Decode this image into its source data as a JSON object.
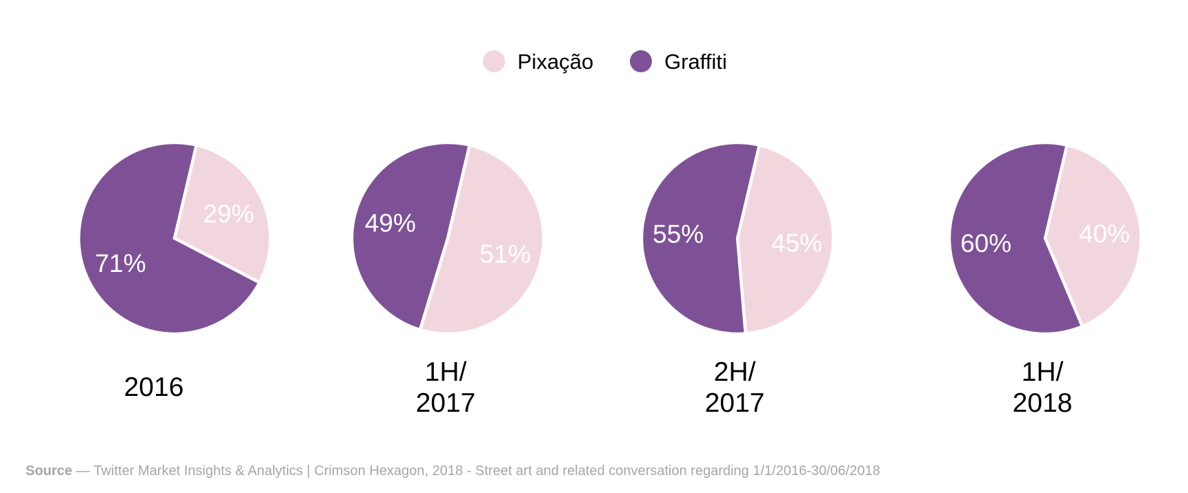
{
  "chart_data": {
    "type": "pie",
    "legend": {
      "placement": "top-center",
      "entries": [
        {
          "name": "Pixação",
          "color": "#f2d6de"
        },
        {
          "name": "Graffiti",
          "color": "#7e5197"
        }
      ]
    },
    "pies": [
      {
        "label_lines": [
          "2016"
        ],
        "slices": [
          {
            "name": "Pixação",
            "value": 29,
            "label": "29%"
          },
          {
            "name": "Graffiti",
            "value": 71,
            "label": "71%"
          }
        ]
      },
      {
        "label_lines": [
          "1H/",
          "2017"
        ],
        "slices": [
          {
            "name": "Pixação",
            "value": 51,
            "label": "51%"
          },
          {
            "name": "Graffiti",
            "value": 49,
            "label": "49%"
          }
        ]
      },
      {
        "label_lines": [
          "2H/",
          "2017"
        ],
        "slices": [
          {
            "name": "Pixação",
            "value": 45,
            "label": "45%"
          },
          {
            "name": "Graffiti",
            "value": 55,
            "label": "55%"
          }
        ]
      },
      {
        "label_lines": [
          "1H/",
          "2018"
        ],
        "slices": [
          {
            "name": "Pixação",
            "value": 40,
            "label": "40%"
          },
          {
            "name": "Graffiti",
            "value": 60,
            "label": "60%"
          }
        ]
      }
    ]
  },
  "source": {
    "label": "Source",
    "text": "— Twitter Market Insights & Analytics | Crimson Hexagon, 2018 - Street art and related conversation regarding 1/1/2016-30/06/2018"
  }
}
